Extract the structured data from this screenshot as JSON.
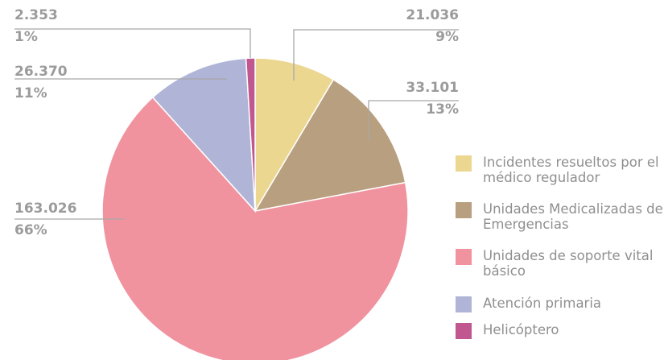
{
  "chart_data": {
    "type": "pie",
    "categories": [
      "Incidentes resueltos por el médico regulador",
      "Unidades Medicalizadas de Emergencias",
      "Unidades de soporte vital básico",
      "Atención primaria",
      "Helicóptero"
    ],
    "values": [
      21036,
      33101,
      163026,
      26370,
      2353
    ],
    "value_labels": [
      "21.036",
      "33.101",
      "163.026",
      "26.370",
      "2.353"
    ],
    "percents": [
      9,
      13,
      66,
      11,
      1
    ],
    "percent_labels": [
      "9%",
      "13%",
      "66%",
      "11%",
      "1%"
    ],
    "colors": [
      "#ecd791",
      "#b89f7f",
      "#f0939f",
      "#b0b5d7",
      "#c0588f"
    ]
  }
}
